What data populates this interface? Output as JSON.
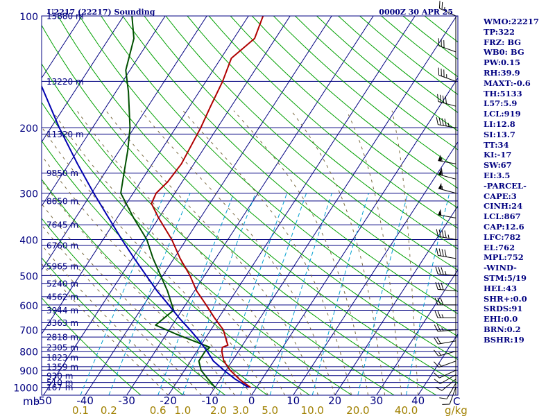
{
  "header": {
    "station": "U2217 (22217) Sounding",
    "valid": "0000Z 30 APR 25"
  },
  "colors": {
    "isobar": "#000080",
    "isotherm": "#000080",
    "dry_adiabat": "#00a000",
    "moist_adiabat": "#7a6a40",
    "mixing_ratio": "#00a0d0",
    "temperature": "#b00000",
    "dewpoint": "#005000",
    "parcel": "#0000b0",
    "mixing_ratio_label": "#a08000"
  },
  "stats": [
    "WMO:22217",
    "TP:322",
    "FRZ: BG",
    "WB0: BG",
    "PW:0.15",
    "RH:39.9",
    "MAXT:-0.6",
    "TH:5133",
    "L57:5.9",
    "LCL:919",
    "LI:12.8",
    "SI:13.7",
    "TT:34",
    "KI:-17",
    "SW:67",
    "EI:3.5",
    "-PARCEL-",
    "CAPE:3",
    "CINH:24",
    "LCL:867",
    "CAP:12.6",
    "LFC:782",
    "EL:762",
    "MPL:752",
    "-WIND-",
    "STM:5/19",
    "HEL:43",
    "SHR+:0.0",
    "SRDS:91",
    "EHI:0.0",
    "BRN:0.2",
    "BSHR:19"
  ],
  "chart_data": {
    "type": "line",
    "title": "U2217 (22217) Sounding",
    "pressure_unit": "mb",
    "pressure_levels": [
      100,
      200,
      300,
      400,
      500,
      600,
      700,
      800,
      900,
      1000
    ],
    "pressure_tick_labels": [
      "100",
      "200",
      "300",
      "400",
      "500",
      "600",
      "700",
      "800",
      "900",
      "1000"
    ],
    "height_levels": [
      {
        "p": 1000,
        "label": "167 m"
      },
      {
        "p": 970,
        "label": "510 m"
      },
      {
        "p": 930,
        "label": "930 m"
      },
      {
        "p": 880,
        "label": "1359 m"
      },
      {
        "p": 830,
        "label": "1823 m"
      },
      {
        "p": 780,
        "label": "2305 m"
      },
      {
        "p": 732,
        "label": "2818 m"
      },
      {
        "p": 670,
        "label": "3363 m"
      },
      {
        "p": 620,
        "label": "3944 m"
      },
      {
        "p": 570,
        "label": "4562 m"
      },
      {
        "p": 525,
        "label": "5240 m"
      },
      {
        "p": 472,
        "label": "5965 m"
      },
      {
        "p": 415,
        "label": "6760 m"
      },
      {
        "p": 365,
        "label": "7645 m"
      },
      {
        "p": 315,
        "label": "8650 m"
      },
      {
        "p": 265,
        "label": "9850 m"
      },
      {
        "p": 208,
        "label": "11320 m"
      },
      {
        "p": 150,
        "label": "13220 m"
      },
      {
        "p": 100,
        "label": "15880 m"
      }
    ],
    "temperature_ticks": [
      -50,
      -40,
      -30,
      -20,
      -10,
      0,
      10,
      20,
      30,
      40
    ],
    "temperature_tick_labels": [
      "-50",
      "-40",
      "-30",
      "-20",
      "-10",
      "0",
      "10",
      "20",
      "30",
      "40"
    ],
    "temperature_unit": "C",
    "mixing_ratio_ticks": [
      0.1,
      0.2,
      0.6,
      1.0,
      2.0,
      3.0,
      5.0,
      10.0,
      20.0,
      40.0
    ],
    "mixing_ratio_tick_labels": [
      "0.1",
      "0.2",
      "0.6",
      "1.0",
      "2.0",
      "3.0",
      "5.0",
      "10.0",
      "20.0",
      "40.0"
    ],
    "mixing_ratio_unit": "g/kg",
    "series": [
      {
        "key": "temperature",
        "points": [
          {
            "p": 1000,
            "t": -1.5
          },
          {
            "p": 975,
            "t": -3.5
          },
          {
            "p": 950,
            "t": -5.5
          },
          {
            "p": 900,
            "t": -9.0
          },
          {
            "p": 850,
            "t": -12.0
          },
          {
            "p": 800,
            "t": -14.0
          },
          {
            "p": 780,
            "t": -14.5
          },
          {
            "p": 770,
            "t": -13.5
          },
          {
            "p": 750,
            "t": -14.5
          },
          {
            "p": 700,
            "t": -17.0
          },
          {
            "p": 650,
            "t": -21.0
          },
          {
            "p": 600,
            "t": -25.0
          },
          {
            "p": 550,
            "t": -29.5
          },
          {
            "p": 500,
            "t": -33.5
          },
          {
            "p": 450,
            "t": -38.5
          },
          {
            "p": 400,
            "t": -43.5
          },
          {
            "p": 350,
            "t": -50.0
          },
          {
            "p": 320,
            "t": -54.0
          },
          {
            "p": 300,
            "t": -54.5
          },
          {
            "p": 280,
            "t": -53.5
          },
          {
            "p": 250,
            "t": -53.0
          },
          {
            "p": 200,
            "t": -54.0
          },
          {
            "p": 175,
            "t": -55.0
          },
          {
            "p": 150,
            "t": -56.0
          },
          {
            "p": 130,
            "t": -57.5
          },
          {
            "p": 115,
            "t": -55.0
          },
          {
            "p": 100,
            "t": -56.5
          }
        ]
      },
      {
        "key": "dewpoint",
        "points": [
          {
            "p": 1000,
            "t": -10.0
          },
          {
            "p": 950,
            "t": -13.0
          },
          {
            "p": 900,
            "t": -16.0
          },
          {
            "p": 850,
            "t": -18.0
          },
          {
            "p": 800,
            "t": -18.0
          },
          {
            "p": 780,
            "t": -17.5
          },
          {
            "p": 720,
            "t": -27.5
          },
          {
            "p": 680,
            "t": -34.0
          },
          {
            "p": 620,
            "t": -32.0
          },
          {
            "p": 550,
            "t": -36.5
          },
          {
            "p": 450,
            "t": -45.0
          },
          {
            "p": 400,
            "t": -49.5
          },
          {
            "p": 350,
            "t": -56.0
          },
          {
            "p": 300,
            "t": -63.0
          },
          {
            "p": 270,
            "t": -65.0
          },
          {
            "p": 230,
            "t": -68.0
          },
          {
            "p": 200,
            "t": -71.0
          },
          {
            "p": 160,
            "t": -77.0
          },
          {
            "p": 140,
            "t": -81.0
          },
          {
            "p": 115,
            "t": -84.0
          },
          {
            "p": 100,
            "t": -88.0
          }
        ]
      },
      {
        "key": "parcel",
        "points": [
          {
            "p": 1000,
            "t": -2.0
          },
          {
            "p": 950,
            "t": -6.5
          },
          {
            "p": 900,
            "t": -10.5
          },
          {
            "p": 850,
            "t": -14.5
          },
          {
            "p": 800,
            "t": -17.5
          },
          {
            "p": 750,
            "t": -21.0
          },
          {
            "p": 700,
            "t": -25.0
          },
          {
            "p": 650,
            "t": -29.5
          },
          {
            "p": 600,
            "t": -34.0
          },
          {
            "p": 550,
            "t": -39.0
          },
          {
            "p": 500,
            "t": -44.0
          },
          {
            "p": 450,
            "t": -49.5
          },
          {
            "p": 400,
            "t": -55.5
          },
          {
            "p": 350,
            "t": -62.0
          },
          {
            "p": 300,
            "t": -69.5
          },
          {
            "p": 250,
            "t": -78.0
          },
          {
            "p": 200,
            "t": -88.0
          },
          {
            "p": 150,
            "t": -100.0
          },
          {
            "p": 120,
            "t": -108.0
          }
        ]
      }
    ],
    "wind_barbs": [
      {
        "p": 1000,
        "dir": 200,
        "spd": 10
      },
      {
        "p": 975,
        "dir": 210,
        "spd": 10
      },
      {
        "p": 950,
        "dir": 230,
        "spd": 10
      },
      {
        "p": 925,
        "dir": 240,
        "spd": 10
      },
      {
        "p": 900,
        "dir": 245,
        "spd": 10
      },
      {
        "p": 850,
        "dir": 250,
        "spd": 15
      },
      {
        "p": 800,
        "dir": 255,
        "spd": 15
      },
      {
        "p": 750,
        "dir": 260,
        "spd": 20
      },
      {
        "p": 700,
        "dir": 265,
        "spd": 25
      },
      {
        "p": 650,
        "dir": 270,
        "spd": 25
      },
      {
        "p": 600,
        "dir": 270,
        "spd": 30
      },
      {
        "p": 550,
        "dir": 275,
        "spd": 30
      },
      {
        "p": 500,
        "dir": 275,
        "spd": 35
      },
      {
        "p": 450,
        "dir": 280,
        "spd": 40
      },
      {
        "p": 400,
        "dir": 280,
        "spd": 45
      },
      {
        "p": 350,
        "dir": 280,
        "spd": 50
      },
      {
        "p": 300,
        "dir": 285,
        "spd": 55
      },
      {
        "p": 275,
        "dir": 285,
        "spd": 60
      },
      {
        "p": 250,
        "dir": 280,
        "spd": 55
      },
      {
        "p": 200,
        "dir": 280,
        "spd": 45
      },
      {
        "p": 175,
        "dir": 285,
        "spd": 40
      },
      {
        "p": 150,
        "dir": 290,
        "spd": 35
      },
      {
        "p": 125,
        "dir": 290,
        "spd": 30
      },
      {
        "p": 100,
        "dir": 295,
        "spd": 25
      }
    ]
  }
}
